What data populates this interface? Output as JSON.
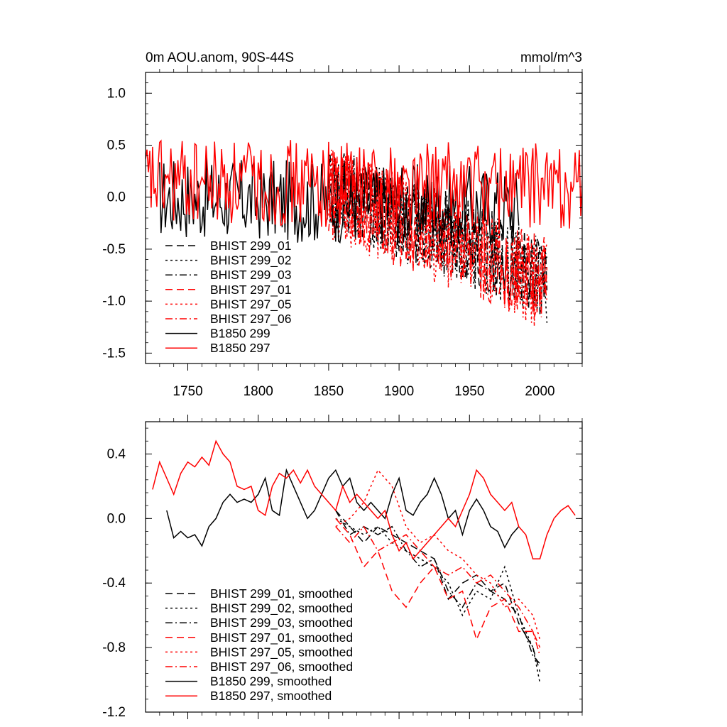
{
  "chart_data": [
    {
      "type": "line",
      "title": "0m AOU.anom, 90S-44S",
      "units_label": "mmol/m^3",
      "xlim": [
        1720,
        2030
      ],
      "ylim": [
        -1.6,
        1.2
      ],
      "xticks": [
        1750,
        1800,
        1850,
        1900,
        1950,
        2000
      ],
      "yticks": [
        1.0,
        0.5,
        0.0,
        -0.5,
        -1.0,
        -1.5
      ],
      "ytick_labels": [
        "1.0",
        "0.5",
        "0.0",
        "-0.5",
        "-1.0",
        "-1.5"
      ],
      "series": [
        {
          "name": "BHIST 299_01",
          "color": "#000000",
          "dash": "dash",
          "x_start": 1850,
          "x_end": 2005,
          "mean_start": 0.1,
          "mean_end": -0.75,
          "amp": 0.42,
          "seed": 11
        },
        {
          "name": "BHIST 299_02",
          "color": "#000000",
          "dash": "dot",
          "x_start": 1850,
          "x_end": 2005,
          "mean_start": 0.1,
          "mean_end": -0.8,
          "amp": 0.42,
          "seed": 12
        },
        {
          "name": "BHIST 299_03",
          "color": "#000000",
          "dash": "dashdot",
          "x_start": 1850,
          "x_end": 2005,
          "mean_start": 0.1,
          "mean_end": -0.75,
          "amp": 0.42,
          "seed": 13
        },
        {
          "name": "BHIST 297_01",
          "color": "#ff0000",
          "dash": "dash",
          "x_start": 1850,
          "x_end": 2005,
          "mean_start": 0.05,
          "mean_end": -0.8,
          "amp": 0.45,
          "seed": 14
        },
        {
          "name": "BHIST 297_05",
          "color": "#ff0000",
          "dash": "dot",
          "x_start": 1850,
          "x_end": 2005,
          "mean_start": 0.05,
          "mean_end": -0.85,
          "amp": 0.45,
          "seed": 15
        },
        {
          "name": "BHIST 297_06",
          "color": "#ff0000",
          "dash": "dashdot",
          "x_start": 1850,
          "x_end": 2005,
          "mean_start": 0.05,
          "mean_end": -0.8,
          "amp": 0.45,
          "seed": 16
        },
        {
          "name": "B1850 299",
          "color": "#000000",
          "dash": "solid",
          "x_start": 1730,
          "x_end": 1985,
          "mean_start": 0.0,
          "mean_end": -0.1,
          "amp": 0.4,
          "seed": 17
        },
        {
          "name": "B1850 297",
          "color": "#ff0000",
          "dash": "solid",
          "x_start": 1720,
          "x_end": 2030,
          "mean_start": 0.15,
          "mean_end": 0.1,
          "amp": 0.42,
          "seed": 18
        }
      ]
    },
    {
      "type": "line",
      "title": "",
      "xlim": [
        1720,
        2030
      ],
      "ylim": [
        -1.2,
        0.6
      ],
      "xticks": [
        1750,
        1800,
        1850,
        1900,
        1950,
        2000
      ],
      "yticks": [
        0.4,
        0.0,
        -0.4,
        -0.8,
        -1.2
      ],
      "ytick_labels": [
        "0.4",
        "0.0",
        "-0.4",
        "-0.8",
        "-1.2"
      ],
      "series": [
        {
          "name": "BHIST 299_01, smoothed",
          "color": "#000000",
          "dash": "dash",
          "x_start": 1855,
          "x_end": 2000,
          "points": [
            [
              1855,
              0.05
            ],
            [
              1865,
              -0.05
            ],
            [
              1875,
              -0.15
            ],
            [
              1885,
              -0.05
            ],
            [
              1895,
              -0.1
            ],
            [
              1905,
              -0.15
            ],
            [
              1915,
              -0.2
            ],
            [
              1925,
              -0.25
            ],
            [
              1935,
              -0.5
            ],
            [
              1945,
              -0.4
            ],
            [
              1955,
              -0.35
            ],
            [
              1965,
              -0.45
            ],
            [
              1975,
              -0.4
            ],
            [
              1985,
              -0.65
            ],
            [
              1995,
              -0.8
            ],
            [
              2000,
              -0.95
            ]
          ]
        },
        {
          "name": "BHIST 299_02, smoothed",
          "color": "#000000",
          "dash": "dot",
          "x_start": 1855,
          "x_end": 2000,
          "points": [
            [
              1855,
              0.0
            ],
            [
              1865,
              -0.05
            ],
            [
              1875,
              -0.1
            ],
            [
              1885,
              -0.05
            ],
            [
              1895,
              -0.15
            ],
            [
              1905,
              -0.2
            ],
            [
              1915,
              -0.25
            ],
            [
              1925,
              -0.3
            ],
            [
              1935,
              -0.4
            ],
            [
              1945,
              -0.6
            ],
            [
              1955,
              -0.45
            ],
            [
              1965,
              -0.5
            ],
            [
              1975,
              -0.3
            ],
            [
              1985,
              -0.6
            ],
            [
              1995,
              -0.8
            ],
            [
              2000,
              -1.02
            ]
          ]
        },
        {
          "name": "BHIST 299_03, smoothed",
          "color": "#000000",
          "dash": "dashdot",
          "x_start": 1855,
          "x_end": 2000,
          "points": [
            [
              1855,
              0.05
            ],
            [
              1865,
              -0.1
            ],
            [
              1875,
              -0.05
            ],
            [
              1885,
              -0.1
            ],
            [
              1895,
              -0.05
            ],
            [
              1905,
              -0.2
            ],
            [
              1915,
              -0.3
            ],
            [
              1925,
              -0.25
            ],
            [
              1935,
              -0.45
            ],
            [
              1945,
              -0.55
            ],
            [
              1955,
              -0.4
            ],
            [
              1965,
              -0.45
            ],
            [
              1975,
              -0.5
            ],
            [
              1985,
              -0.6
            ],
            [
              1995,
              -0.85
            ],
            [
              2000,
              -0.9
            ]
          ]
        },
        {
          "name": "BHIST 297_01, smoothed",
          "color": "#ff0000",
          "dash": "dash",
          "x_start": 1855,
          "x_end": 2000,
          "points": [
            [
              1855,
              0.0
            ],
            [
              1865,
              -0.1
            ],
            [
              1875,
              -0.3
            ],
            [
              1885,
              -0.2
            ],
            [
              1895,
              -0.45
            ],
            [
              1905,
              -0.55
            ],
            [
              1915,
              -0.4
            ],
            [
              1925,
              -0.3
            ],
            [
              1935,
              -0.5
            ],
            [
              1945,
              -0.45
            ],
            [
              1955,
              -0.75
            ],
            [
              1965,
              -0.55
            ],
            [
              1975,
              -0.5
            ],
            [
              1985,
              -0.7
            ],
            [
              1995,
              -0.7
            ],
            [
              2000,
              -0.8
            ]
          ]
        },
        {
          "name": "BHIST 297_05, smoothed",
          "color": "#ff0000",
          "dash": "dot",
          "x_start": 1855,
          "x_end": 2000,
          "points": [
            [
              1855,
              -0.05
            ],
            [
              1865,
              0.0
            ],
            [
              1875,
              0.1
            ],
            [
              1885,
              0.3
            ],
            [
              1895,
              0.2
            ],
            [
              1905,
              -0.05
            ],
            [
              1915,
              -0.15
            ],
            [
              1925,
              -0.1
            ],
            [
              1935,
              -0.2
            ],
            [
              1945,
              -0.25
            ],
            [
              1955,
              -0.35
            ],
            [
              1965,
              -0.4
            ],
            [
              1975,
              -0.55
            ],
            [
              1985,
              -0.5
            ],
            [
              1995,
              -0.6
            ],
            [
              2000,
              -0.75
            ]
          ]
        },
        {
          "name": "BHIST 297_06, smoothed",
          "color": "#ff0000",
          "dash": "dashdot",
          "x_start": 1855,
          "x_end": 2000,
          "points": [
            [
              1855,
              -0.05
            ],
            [
              1865,
              -0.15
            ],
            [
              1875,
              -0.05
            ],
            [
              1885,
              -0.2
            ],
            [
              1895,
              -0.15
            ],
            [
              1905,
              -0.1
            ],
            [
              1915,
              -0.2
            ],
            [
              1925,
              -0.3
            ],
            [
              1935,
              -0.35
            ],
            [
              1945,
              -0.3
            ],
            [
              1955,
              -0.4
            ],
            [
              1965,
              -0.35
            ],
            [
              1975,
              -0.45
            ],
            [
              1985,
              -0.55
            ],
            [
              1995,
              -0.7
            ],
            [
              2000,
              -0.85
            ]
          ]
        },
        {
          "name": "B1850 299, smoothed",
          "color": "#000000",
          "dash": "solid",
          "x_start": 1735,
          "x_end": 1985,
          "points": [
            [
              1735,
              0.05
            ],
            [
              1740,
              -0.12
            ],
            [
              1745,
              -0.08
            ],
            [
              1750,
              -0.12
            ],
            [
              1755,
              -0.1
            ],
            [
              1760,
              -0.17
            ],
            [
              1765,
              -0.05
            ],
            [
              1770,
              0.0
            ],
            [
              1775,
              0.1
            ],
            [
              1780,
              0.15
            ],
            [
              1785,
              0.1
            ],
            [
              1790,
              0.12
            ],
            [
              1795,
              0.1
            ],
            [
              1800,
              0.15
            ],
            [
              1805,
              0.25
            ],
            [
              1810,
              0.05
            ],
            [
              1815,
              0.02
            ],
            [
              1820,
              0.3
            ],
            [
              1825,
              0.2
            ],
            [
              1830,
              0.1
            ],
            [
              1835,
              0.0
            ],
            [
              1840,
              0.05
            ],
            [
              1845,
              0.15
            ],
            [
              1850,
              0.25
            ],
            [
              1855,
              0.3
            ],
            [
              1860,
              0.2
            ],
            [
              1865,
              0.25
            ],
            [
              1870,
              0.1
            ],
            [
              1875,
              0.05
            ],
            [
              1880,
              0.1
            ],
            [
              1885,
              0.05
            ],
            [
              1890,
              0.0
            ],
            [
              1895,
              0.15
            ],
            [
              1900,
              0.25
            ],
            [
              1905,
              0.05
            ],
            [
              1910,
              0.02
            ],
            [
              1915,
              0.1
            ],
            [
              1920,
              0.15
            ],
            [
              1925,
              0.25
            ],
            [
              1930,
              0.15
            ],
            [
              1935,
              0.0
            ],
            [
              1940,
              0.05
            ],
            [
              1945,
              -0.1
            ],
            [
              1950,
              0.05
            ],
            [
              1955,
              0.12
            ],
            [
              1960,
              0.05
            ],
            [
              1965,
              -0.05
            ],
            [
              1970,
              -0.08
            ],
            [
              1975,
              -0.18
            ],
            [
              1980,
              -0.1
            ],
            [
              1985,
              -0.05
            ]
          ]
        },
        {
          "name": "B1850 297, smoothed",
          "color": "#ff0000",
          "dash": "solid",
          "x_start": 1725,
          "x_end": 2025,
          "points": [
            [
              1725,
              0.18
            ],
            [
              1730,
              0.35
            ],
            [
              1735,
              0.25
            ],
            [
              1740,
              0.15
            ],
            [
              1745,
              0.28
            ],
            [
              1750,
              0.35
            ],
            [
              1755,
              0.32
            ],
            [
              1760,
              0.38
            ],
            [
              1765,
              0.33
            ],
            [
              1770,
              0.48
            ],
            [
              1775,
              0.4
            ],
            [
              1780,
              0.35
            ],
            [
              1785,
              0.2
            ],
            [
              1790,
              0.18
            ],
            [
              1795,
              0.2
            ],
            [
              1800,
              0.05
            ],
            [
              1805,
              0.02
            ],
            [
              1810,
              0.2
            ],
            [
              1815,
              0.28
            ],
            [
              1820,
              0.25
            ],
            [
              1825,
              0.3
            ],
            [
              1830,
              0.22
            ],
            [
              1835,
              0.3
            ],
            [
              1840,
              0.2
            ],
            [
              1845,
              0.15
            ],
            [
              1850,
              0.1
            ],
            [
              1855,
              0.05
            ],
            [
              1860,
              0.2
            ],
            [
              1865,
              0.1
            ],
            [
              1870,
              0.15
            ],
            [
              1875,
              0.1
            ],
            [
              1880,
              0.05
            ],
            [
              1885,
              0.0
            ],
            [
              1890,
              0.05
            ],
            [
              1895,
              -0.1
            ],
            [
              1900,
              -0.2
            ],
            [
              1905,
              -0.15
            ],
            [
              1910,
              -0.25
            ],
            [
              1915,
              -0.2
            ],
            [
              1920,
              -0.15
            ],
            [
              1925,
              -0.1
            ],
            [
              1930,
              -0.05
            ],
            [
              1935,
              0.0
            ],
            [
              1940,
              -0.05
            ],
            [
              1945,
              0.05
            ],
            [
              1950,
              0.15
            ],
            [
              1955,
              0.3
            ],
            [
              1960,
              0.25
            ],
            [
              1965,
              0.15
            ],
            [
              1970,
              0.1
            ],
            [
              1975,
              0.05
            ],
            [
              1980,
              0.1
            ],
            [
              1985,
              -0.05
            ],
            [
              1990,
              -0.1
            ],
            [
              1995,
              -0.25
            ],
            [
              2000,
              -0.25
            ],
            [
              2005,
              -0.1
            ],
            [
              2010,
              0.0
            ],
            [
              2015,
              0.05
            ],
            [
              2020,
              0.08
            ],
            [
              2025,
              0.02
            ]
          ]
        }
      ]
    }
  ]
}
